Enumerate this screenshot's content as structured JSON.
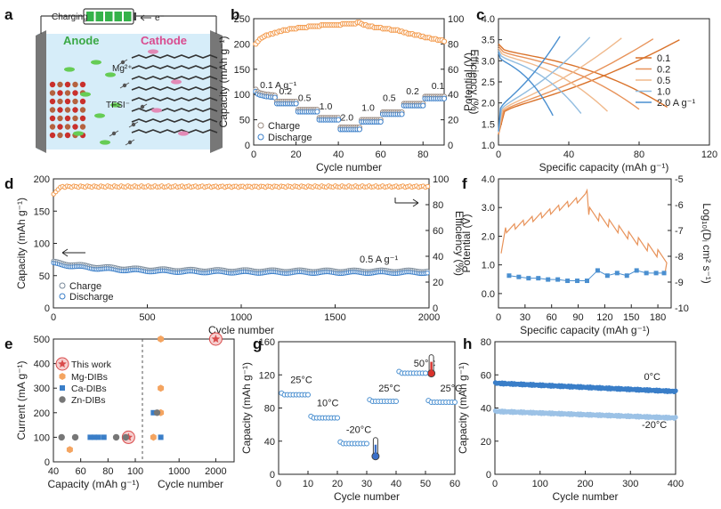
{
  "chart_data": [
    {
      "panel": "a",
      "type": "schematic",
      "labels": {
        "charging": "Charging",
        "electron": "e⁻",
        "anode": "Anode",
        "cathode": "Cathode",
        "mg_ion": "Mg²⁺",
        "anion": "TFSI⁻"
      },
      "colors": {
        "anode_label": "#3aa845",
        "cathode_label": "#d94b8f",
        "electrolyte": "#cde7f7",
        "battery": "#35b24a"
      }
    },
    {
      "panel": "b",
      "type": "scatter",
      "xlabel": "Cycle number",
      "ylabel": "Capacity (mAh g⁻¹)",
      "y2label": "Efficiency (%)",
      "xlim": [
        0,
        90
      ],
      "ylim": [
        0,
        250
      ],
      "y2lim": [
        0,
        100
      ],
      "xticks": [
        0,
        20,
        40,
        60,
        80
      ],
      "yticks": [
        0,
        50,
        100,
        150,
        200,
        250
      ],
      "y2ticks": [
        0,
        20,
        40,
        60,
        80,
        100
      ],
      "rate_labels": [
        {
          "text": "0.1 A g⁻¹",
          "x": 3,
          "y": 113
        },
        {
          "text": "0.2",
          "x": 12,
          "y": 100
        },
        {
          "text": "0.5",
          "x": 21,
          "y": 87
        },
        {
          "text": "1.0",
          "x": 31,
          "y": 70
        },
        {
          "text": "2.0",
          "x": 41,
          "y": 48
        },
        {
          "text": "1.0",
          "x": 51,
          "y": 68
        },
        {
          "text": "0.5",
          "x": 61,
          "y": 87
        },
        {
          "text": "0.2",
          "x": 72,
          "y": 100
        },
        {
          "text": "0.1",
          "x": 84,
          "y": 111
        }
      ],
      "segments": [
        {
          "from": 1,
          "to": 10,
          "capacity": [
            108,
            103,
            101,
            100,
            99,
            98,
            98,
            97,
            97,
            96
          ]
        },
        {
          "from": 11,
          "to": 20,
          "capacity": 84
        },
        {
          "from": 21,
          "to": 30,
          "capacity": 68
        },
        {
          "from": 31,
          "to": 40,
          "capacity": 52
        },
        {
          "from": 41,
          "to": 50,
          "capacity": 33
        },
        {
          "from": 51,
          "to": 60,
          "capacity": 48
        },
        {
          "from": 61,
          "to": 70,
          "capacity": 63
        },
        {
          "from": 71,
          "to": 80,
          "capacity": 80
        },
        {
          "from": 81,
          "to": 90,
          "capacity": 94
        }
      ],
      "efficiency": [
        80,
        82,
        84,
        85,
        86,
        87,
        87,
        88,
        88,
        89,
        89,
        90,
        90,
        91,
        91,
        91,
        92,
        92,
        92,
        92,
        93,
        93,
        93,
        93,
        93,
        94,
        94,
        94,
        94,
        94,
        94,
        95,
        95,
        95,
        95,
        95,
        95,
        95,
        95,
        95,
        95,
        96,
        96,
        96,
        96,
        96,
        96,
        96,
        97,
        97,
        96,
        95,
        95,
        94,
        94,
        94,
        93,
        93,
        93,
        93,
        92,
        92,
        92,
        92,
        91,
        91,
        91,
        91,
        90,
        90,
        89,
        89,
        88,
        88,
        88,
        87,
        87,
        87,
        86,
        86,
        85,
        85,
        85,
        84,
        84,
        84,
        83,
        83,
        83,
        82
      ],
      "legend": [
        "Charge",
        "Discharge"
      ],
      "colors": {
        "charge": "#9a8a80",
        "discharge": "#3a7ec8",
        "efficiency": "#f39a4c"
      }
    },
    {
      "panel": "c",
      "type": "line",
      "xlabel": "Specific capacity (mAh g⁻¹)",
      "ylabel": "Potential (V)",
      "xlim": [
        0,
        120
      ],
      "ylim": [
        1.0,
        4.0
      ],
      "xticks": [
        0,
        40,
        80,
        120
      ],
      "yticks": [
        1.0,
        1.5,
        2.0,
        2.5,
        3.0,
        3.5,
        4.0
      ],
      "series": [
        {
          "name": "0.1",
          "color": "#d9722a",
          "qmax": 103,
          "qdis": 96
        },
        {
          "name": "0.2",
          "color": "#e8935a",
          "qmax": 88,
          "qdis": 80
        },
        {
          "name": "0.5",
          "color": "#f0b98c",
          "qmax": 70,
          "qdis": 62
        },
        {
          "name": "1.0",
          "color": "#92bde0",
          "qmax": 52,
          "qdis": 47
        },
        {
          "name": "2.0 A g⁻¹",
          "color": "#4a8fd0",
          "qmax": 35,
          "qdis": 31
        }
      ]
    },
    {
      "panel": "d",
      "type": "scatter",
      "xlabel": "Cycle number",
      "ylabel": "Capacity (mAh g⁻¹)",
      "y2label": "Efficiency (%)",
      "xlim": [
        0,
        2000
      ],
      "ylim": [
        0,
        200
      ],
      "y2lim": [
        0,
        100
      ],
      "xticks": [
        0,
        500,
        1000,
        1500,
        2000
      ],
      "yticks": [
        0,
        50,
        100,
        150,
        200
      ],
      "y2ticks": [
        0,
        20,
        40,
        60,
        80,
        100
      ],
      "annotation": "0.5 A g⁻¹",
      "legend": [
        "Charge",
        "Discharge"
      ],
      "capacity_start": 70,
      "capacity_end": 56,
      "efficiency_start": 88,
      "efficiency_plateau": 94,
      "colors": {
        "charge": "#7a8a9a",
        "discharge": "#3a7ec8",
        "efficiency": "#f39a4c"
      }
    },
    {
      "panel": "e",
      "type": "scatter",
      "xlabel": "Capacity (mAh g⁻¹)",
      "xlabel2": "Cycle number",
      "ylabel": "Current (mA g⁻¹)",
      "xlim": [
        40,
        100
      ],
      "x2lim": [
        0,
        2500
      ],
      "ylim": [
        0,
        500
      ],
      "xticks": [
        40,
        60,
        80,
        100
      ],
      "x2ticks": [
        1000,
        2000
      ],
      "yticks": [
        0,
        100,
        200,
        300,
        400,
        500
      ],
      "legend": [
        "This work",
        "Mg-DIBs",
        "Ca-DIBs",
        "Zn-DIBs"
      ],
      "this_work": [
        {
          "capacity": 95,
          "current": 100
        }
      ],
      "this_work_cycles": [
        {
          "cycles": 2000,
          "current": 500
        }
      ],
      "mg": [
        {
          "capacity": 52,
          "current": 50
        }
      ],
      "ca": [
        {
          "capacity": 67,
          "current": 100
        },
        {
          "capacity": 70,
          "current": 100
        },
        {
          "capacity": 73,
          "current": 100
        },
        {
          "capacity": 77,
          "current": 100
        }
      ],
      "zn": [
        {
          "capacity": 46,
          "current": 100
        },
        {
          "capacity": 56,
          "current": 100
        },
        {
          "capacity": 86,
          "current": 100
        },
        {
          "capacity": 93,
          "current": 100
        }
      ],
      "mg_cycles": [
        {
          "cycles": 500,
          "current": 500
        },
        {
          "cycles": 500,
          "current": 300
        },
        {
          "cycles": 500,
          "current": 200
        },
        {
          "cycles": 300,
          "current": 100
        }
      ],
      "ca_cycles": [
        {
          "cycles": 300,
          "current": 200
        },
        {
          "cycles": 500,
          "current": 100
        }
      ],
      "zn_cycles": [
        {
          "cycles": 400,
          "current": 200
        }
      ],
      "colors": {
        "this_work": "#d94b4b",
        "mg": "#f4a460",
        "ca": "#3a7ec8",
        "zn": "#777777"
      }
    },
    {
      "panel": "f",
      "type": "line",
      "xlabel": "Specific capacity (mAh g⁻¹)",
      "ylabel": "Potential (V)",
      "y2label": "Log₁₀(Dᵢ cm² s⁻¹)",
      "xlim": [
        0,
        195
      ],
      "ylim": [
        -0.5,
        4.0
      ],
      "y2lim": [
        -10,
        -5
      ],
      "xticks": [
        0,
        30,
        60,
        90,
        120,
        150,
        180
      ],
      "yticks": [
        0.0,
        1.0,
        2.0,
        3.0,
        4.0
      ],
      "y2ticks": [
        -10,
        -9,
        -8,
        -7,
        -6,
        -5
      ],
      "diffusion": [
        {
          "x": 12,
          "y": -8.75
        },
        {
          "x": 23,
          "y": -8.8
        },
        {
          "x": 34,
          "y": -8.85
        },
        {
          "x": 45,
          "y": -8.85
        },
        {
          "x": 56,
          "y": -8.9
        },
        {
          "x": 67,
          "y": -8.9
        },
        {
          "x": 78,
          "y": -8.95
        },
        {
          "x": 89,
          "y": -8.95
        },
        {
          "x": 100,
          "y": -8.95
        },
        {
          "x": 112,
          "y": -8.55
        },
        {
          "x": 123,
          "y": -8.75
        },
        {
          "x": 134,
          "y": -8.65
        },
        {
          "x": 145,
          "y": -8.75
        },
        {
          "x": 156,
          "y": -8.55
        },
        {
          "x": 167,
          "y": -8.65
        },
        {
          "x": 178,
          "y": -8.65
        },
        {
          "x": 187,
          "y": -8.65
        }
      ],
      "colors": {
        "potential": "#e8935a",
        "diffusion": "#4a8fd0"
      }
    },
    {
      "panel": "g",
      "type": "scatter",
      "xlabel": "Cycle number",
      "ylabel": "Capacity (mAh g⁻¹)",
      "xlim": [
        0,
        60
      ],
      "ylim": [
        0,
        160
      ],
      "xticks": [
        0,
        10,
        20,
        30,
        40,
        50,
        60
      ],
      "yticks": [
        0,
        40,
        80,
        120,
        160
      ],
      "temperature_labels": [
        {
          "text": "25°C",
          "x": 4,
          "y": 110
        },
        {
          "text": "10°C",
          "x": 13,
          "y": 82
        },
        {
          "text": "-20°C",
          "x": 23,
          "y": 50
        },
        {
          "text": "25°C",
          "x": 34,
          "y": 100
        },
        {
          "text": "50°C",
          "x": 46,
          "y": 130
        },
        {
          "text": "25°C",
          "x": 55,
          "y": 100
        }
      ],
      "segments": [
        {
          "from": 1,
          "to": 10,
          "capacity": 96
        },
        {
          "from": 11,
          "to": 20,
          "capacity": 68
        },
        {
          "from": 21,
          "to": 30,
          "capacity": 37
        },
        {
          "from": 31,
          "to": 40,
          "capacity": 88
        },
        {
          "from": 41,
          "to": 50,
          "capacity": 122
        },
        {
          "from": 51,
          "to": 60,
          "capacity": 87
        }
      ],
      "color": "#4a8fd0"
    },
    {
      "panel": "h",
      "type": "scatter",
      "xlabel": "Cycle number",
      "ylabel": "Capacity (mAh g⁻¹)",
      "xlim": [
        0,
        400
      ],
      "ylim": [
        0,
        80
      ],
      "xticks": [
        0,
        100,
        200,
        300,
        400
      ],
      "yticks": [
        0,
        20,
        40,
        60,
        80
      ],
      "series": [
        {
          "name": "0°C",
          "start": 55,
          "end": 50,
          "color": "#3a7ec8"
        },
        {
          "name": "-20°C",
          "start": 38,
          "end": 34,
          "color": "#9cc2e6"
        }
      ]
    }
  ]
}
